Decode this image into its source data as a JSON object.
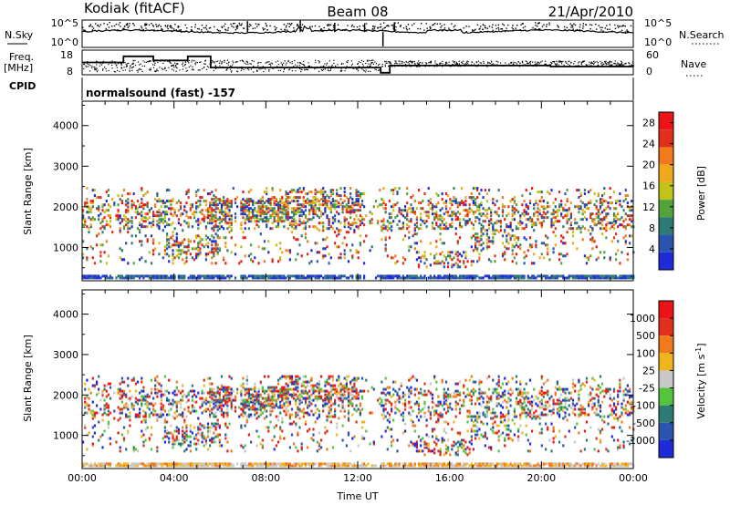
{
  "header": {
    "station": "Kodiak (fitACF)",
    "beam": "Beam 08",
    "date": "21/Apr/2010"
  },
  "side_labels": {
    "nsky": "N.Sky",
    "nsearch": "N.Search",
    "freq_line1": "Freq.",
    "freq_line2": "[MHz]",
    "nave": "Nave",
    "cpid": "CPID"
  },
  "cpid_text": "normalsound (fast) -157",
  "chart_data": [
    {
      "type": "line",
      "panel": "noise",
      "y_left_ticks": [
        "10^5",
        "10^0"
      ],
      "y_right_ticks": [
        "10^5",
        "10^0"
      ],
      "xlim": [
        "00:00",
        "24:00"
      ]
    },
    {
      "type": "line",
      "panel": "frequency-nave",
      "y_left_ticks": [
        "18",
        "8"
      ],
      "y_right_ticks": [
        "60",
        "0"
      ],
      "freq_steps": [
        {
          "t0": 0.0,
          "t1": 1.8,
          "mhz": 13
        },
        {
          "t0": 1.8,
          "t1": 3.1,
          "mhz": 16
        },
        {
          "t0": 3.1,
          "t1": 4.6,
          "mhz": 14
        },
        {
          "t0": 4.6,
          "t1": 5.6,
          "mhz": 16
        },
        {
          "t0": 5.6,
          "t1": 13.0,
          "mhz": 10.5
        },
        {
          "t0": 13.0,
          "t1": 13.4,
          "mhz": 8
        },
        {
          "t0": 13.4,
          "t1": 20.4,
          "mhz": 11.5
        },
        {
          "t0": 20.4,
          "t1": 24.0,
          "mhz": 11
        }
      ]
    },
    {
      "type": "heatmap",
      "panel": "power",
      "ylabel": "Slant Range [km]",
      "yticks": [
        1000,
        2000,
        3000,
        4000
      ],
      "ylim": [
        180,
        4600
      ],
      "xlim": [
        "00:00",
        "24:00"
      ],
      "colorbar_label": "Power [dB]",
      "colorbar_ticks": [
        4,
        8,
        12,
        16,
        20,
        24,
        28
      ],
      "colorbar_range": [
        0,
        30
      ],
      "colors": [
        "#1e2bd8",
        "#2b54b0",
        "#2e7b74",
        "#54a23c",
        "#c0c418",
        "#f0a81c",
        "#f07a1c",
        "#e0301c",
        "#ec1414"
      ]
    },
    {
      "type": "heatmap",
      "panel": "velocity",
      "ylabel": "Slant Range [km]",
      "yticks": [
        1000,
        2000,
        3000,
        4000
      ],
      "ylim": [
        180,
        4600
      ],
      "xlim": [
        "00:00",
        "24:00"
      ],
      "xlabel": "Time UT",
      "xticks": [
        "00:00",
        "04:00",
        "08:00",
        "12:00",
        "16:00",
        "20:00",
        "00:00"
      ],
      "colorbar_label": "Velocity [m s",
      "colorbar_label_sup": "-1",
      "colorbar_label_end": "]",
      "colorbar_ticks": [
        "1000",
        "500",
        "100",
        "25",
        "-25",
        "-100",
        "-500",
        "-1000"
      ],
      "colors": [
        "#1e2bd8",
        "#2b54b0",
        "#2e7b74",
        "#54c43c",
        "#c8c8c8",
        "#f0b41c",
        "#f07a1c",
        "#e0301c",
        "#ec1414"
      ]
    }
  ]
}
